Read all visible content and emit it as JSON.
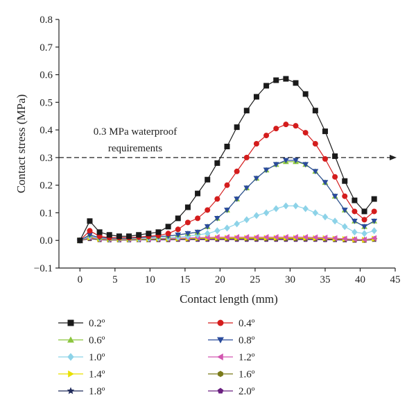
{
  "chart_data": {
    "type": "line",
    "xlabel": "Contact length (mm)",
    "ylabel": "Contact stress (MPa)",
    "xlim": [
      -3,
      45
    ],
    "ylim": [
      -0.1,
      0.8
    ],
    "xticks": [
      0,
      5,
      10,
      15,
      20,
      25,
      30,
      35,
      40,
      45
    ],
    "yticks": [
      -0.1,
      0.0,
      0.1,
      0.2,
      0.3,
      0.4,
      0.5,
      0.6,
      0.7,
      0.8
    ],
    "ytick_labels": [
      "−0.1",
      "0.0",
      "0.1",
      "0.2",
      "0.3",
      "0.4",
      "0.5",
      "0.6",
      "0.7",
      "0.8"
    ],
    "grid": false,
    "legend_position": "below-plot",
    "x": [
      0,
      1.4,
      2.8,
      4.2,
      5.6,
      7.0,
      8.4,
      9.8,
      11.2,
      12.6,
      14.0,
      15.4,
      16.8,
      18.2,
      19.6,
      21.0,
      22.4,
      23.8,
      25.2,
      26.6,
      28.0,
      29.4,
      30.8,
      32.2,
      33.6,
      35.0,
      36.4,
      37.8,
      39.2,
      40.6,
      42.0
    ],
    "reference_line": {
      "y": 0.3,
      "label_line1": "0.3 MPa waterproof",
      "label_line2": "requirements"
    },
    "series": [
      {
        "name": "0.2º",
        "color": "#1a1a1a",
        "marker": "square",
        "values": [
          0.0,
          0.07,
          0.03,
          0.02,
          0.015,
          0.015,
          0.02,
          0.025,
          0.03,
          0.05,
          0.08,
          0.12,
          0.17,
          0.22,
          0.28,
          0.34,
          0.41,
          0.47,
          0.52,
          0.56,
          0.58,
          0.585,
          0.57,
          0.53,
          0.47,
          0.395,
          0.305,
          0.215,
          0.145,
          0.105,
          0.15
        ]
      },
      {
        "name": "0.4º",
        "color": "#d41c1c",
        "marker": "circle",
        "values": [
          0.0,
          0.035,
          0.015,
          0.01,
          0.01,
          0.01,
          0.012,
          0.015,
          0.018,
          0.025,
          0.04,
          0.065,
          0.08,
          0.11,
          0.15,
          0.2,
          0.25,
          0.3,
          0.35,
          0.38,
          0.405,
          0.42,
          0.415,
          0.39,
          0.35,
          0.295,
          0.23,
          0.16,
          0.105,
          0.075,
          0.105
        ]
      },
      {
        "name": "0.6º",
        "color": "#8cc63f",
        "marker": "triangle-up",
        "values": [
          0.0,
          0.02,
          0.01,
          0.008,
          0.008,
          0.008,
          0.01,
          0.012,
          0.014,
          0.016,
          0.02,
          0.025,
          0.03,
          0.05,
          0.08,
          0.11,
          0.15,
          0.19,
          0.225,
          0.255,
          0.275,
          0.285,
          0.285,
          0.275,
          0.25,
          0.21,
          0.16,
          0.11,
          0.07,
          0.05,
          0.07
        ]
      },
      {
        "name": "0.8º",
        "color": "#2a4b9b",
        "marker": "triangle-down",
        "values": [
          0.0,
          0.02,
          0.01,
          0.008,
          0.008,
          0.008,
          0.01,
          0.012,
          0.014,
          0.016,
          0.02,
          0.025,
          0.03,
          0.05,
          0.08,
          0.11,
          0.15,
          0.19,
          0.225,
          0.255,
          0.275,
          0.29,
          0.29,
          0.275,
          0.25,
          0.21,
          0.16,
          0.11,
          0.07,
          0.05,
          0.07
        ]
      },
      {
        "name": "1.0º",
        "color": "#8dd3e8",
        "marker": "diamond",
        "values": [
          0.0,
          0.015,
          0.008,
          0.006,
          0.006,
          0.006,
          0.007,
          0.008,
          0.009,
          0.01,
          0.012,
          0.015,
          0.02,
          0.025,
          0.035,
          0.045,
          0.06,
          0.075,
          0.09,
          0.1,
          0.115,
          0.125,
          0.125,
          0.115,
          0.1,
          0.085,
          0.07,
          0.05,
          0.03,
          0.025,
          0.035
        ]
      },
      {
        "name": "1.2º",
        "color": "#d256b0",
        "marker": "triangle-left",
        "values": [
          0.0,
          0.012,
          0.006,
          0.005,
          0.005,
          0.005,
          0.006,
          0.006,
          0.007,
          0.007,
          0.008,
          0.009,
          0.01,
          0.011,
          0.012,
          0.012,
          0.012,
          0.012,
          0.012,
          0.012,
          0.012,
          0.012,
          0.012,
          0.012,
          0.011,
          0.01,
          0.008,
          0.006,
          0.004,
          0.003,
          0.008
        ]
      },
      {
        "name": "1.4º",
        "color": "#e8e000",
        "marker": "triangle-right",
        "values": [
          0.0,
          0.01,
          0.005,
          0.004,
          0.004,
          0.004,
          0.005,
          0.005,
          0.006,
          0.006,
          0.007,
          0.007,
          0.008,
          0.008,
          0.009,
          0.009,
          0.009,
          0.009,
          0.009,
          0.009,
          0.009,
          0.009,
          0.009,
          0.009,
          0.008,
          0.008,
          0.006,
          0.005,
          0.003,
          0.002,
          0.006
        ]
      },
      {
        "name": "1.6º",
        "color": "#7a7a1a",
        "marker": "hexagon",
        "values": [
          0.0,
          0.009,
          0.004,
          0.003,
          0.003,
          0.003,
          0.004,
          0.004,
          0.005,
          0.005,
          0.006,
          0.006,
          0.007,
          0.007,
          0.007,
          0.007,
          0.007,
          0.007,
          0.007,
          0.007,
          0.007,
          0.007,
          0.007,
          0.007,
          0.007,
          0.006,
          0.005,
          0.004,
          0.002,
          0.001,
          0.005
        ]
      },
      {
        "name": "1.8º",
        "color": "#1f2a5a",
        "marker": "star",
        "values": [
          0.0,
          0.008,
          0.004,
          0.003,
          0.003,
          0.003,
          0.003,
          0.003,
          0.004,
          0.004,
          0.005,
          0.005,
          0.005,
          0.006,
          0.006,
          0.006,
          0.006,
          0.006,
          0.006,
          0.006,
          0.006,
          0.006,
          0.006,
          0.006,
          0.006,
          0.005,
          0.004,
          0.003,
          0.002,
          0.001,
          0.004
        ]
      },
      {
        "name": "2.0º",
        "color": "#6a2080",
        "marker": "pentagon",
        "values": [
          0.0,
          0.006,
          0.002,
          0.001,
          0.001,
          0.001,
          0.002,
          0.002,
          0.002,
          0.002,
          0.003,
          0.003,
          0.003,
          0.003,
          0.003,
          0.003,
          0.003,
          0.003,
          0.003,
          0.003,
          0.003,
          0.003,
          0.003,
          0.003,
          0.003,
          0.002,
          0.002,
          0.001,
          0.0,
          0.0,
          0.003
        ]
      }
    ]
  }
}
